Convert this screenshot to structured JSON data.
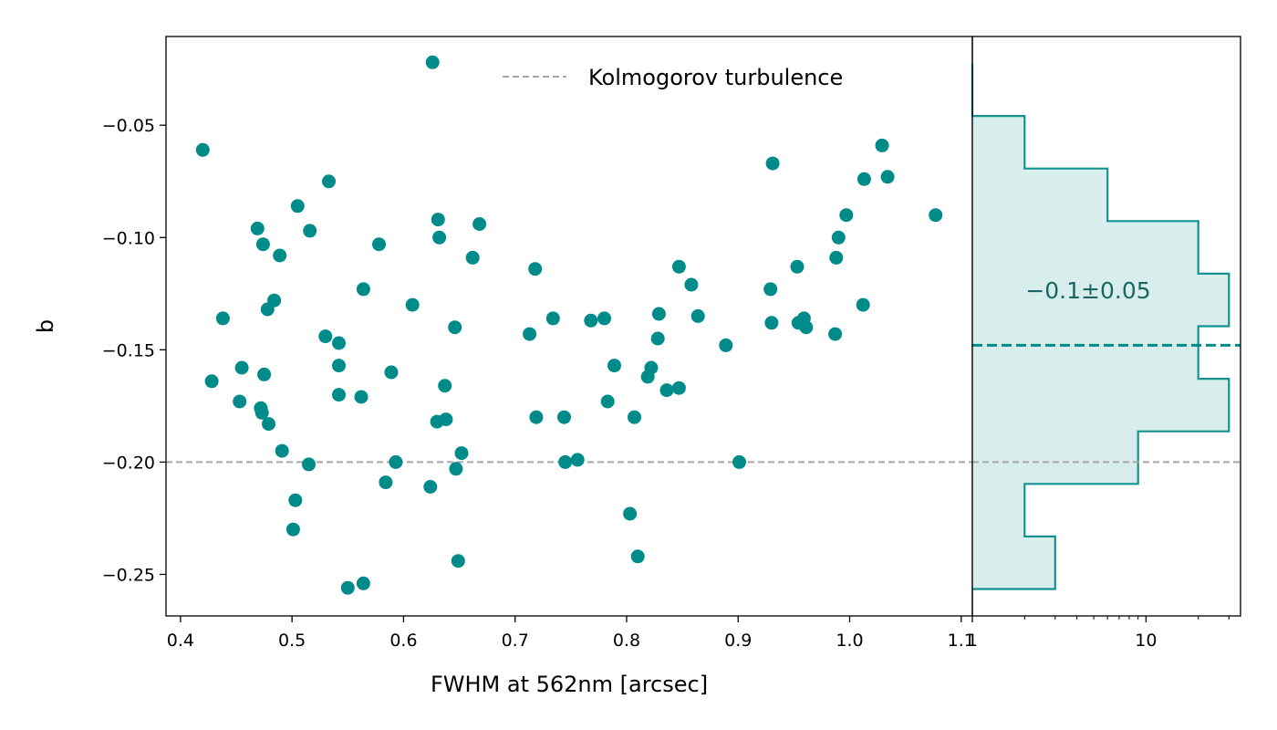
{
  "chart_data": [
    {
      "type": "scatter",
      "xlabel": "FWHM at 562nm [arcsec]",
      "ylabel": "b",
      "xlim": [
        0.387,
        1.11
      ],
      "ylim": [
        -0.2685,
        -0.0105
      ],
      "x_ticks": [
        0.4,
        0.5,
        0.6,
        0.7,
        0.8,
        0.9,
        1.0,
        1.1
      ],
      "x_tick_labels": [
        "0.4",
        "0.5",
        "0.6",
        "0.7",
        "0.8",
        "0.9",
        "1.0",
        "1.1"
      ],
      "y_ticks": [
        -0.05,
        -0.1,
        -0.15,
        -0.2,
        -0.25
      ],
      "y_tick_labels": [
        "−0.05",
        "−0.10",
        "−0.15",
        "−0.20",
        "−0.25"
      ],
      "grid": false,
      "legend": {
        "placement": "top-right",
        "entries": [
          "Kolmogorov turbulence"
        ]
      },
      "reference_line": {
        "name": "Kolmogorov turbulence",
        "y": -0.2,
        "style": "dashed",
        "color": "#a6a6a6"
      },
      "marker_color": "#008b8b",
      "points": [
        [
          0.42,
          -0.061
        ],
        [
          0.428,
          -0.164
        ],
        [
          0.438,
          -0.136
        ],
        [
          0.453,
          -0.173
        ],
        [
          0.455,
          -0.158
        ],
        [
          0.469,
          -0.096
        ],
        [
          0.472,
          -0.176
        ],
        [
          0.473,
          -0.178
        ],
        [
          0.474,
          -0.103
        ],
        [
          0.475,
          -0.161
        ],
        [
          0.478,
          -0.132
        ],
        [
          0.479,
          -0.183
        ],
        [
          0.484,
          -0.128
        ],
        [
          0.489,
          -0.108
        ],
        [
          0.491,
          -0.195
        ],
        [
          0.501,
          -0.23
        ],
        [
          0.503,
          -0.217
        ],
        [
          0.505,
          -0.086
        ],
        [
          0.515,
          -0.201
        ],
        [
          0.516,
          -0.097
        ],
        [
          0.53,
          -0.144
        ],
        [
          0.533,
          -0.075
        ],
        [
          0.542,
          -0.147
        ],
        [
          0.542,
          -0.157
        ],
        [
          0.542,
          -0.17
        ],
        [
          0.55,
          -0.256
        ],
        [
          0.562,
          -0.171
        ],
        [
          0.564,
          -0.254
        ],
        [
          0.564,
          -0.123
        ],
        [
          0.578,
          -0.103
        ],
        [
          0.584,
          -0.209
        ],
        [
          0.589,
          -0.16
        ],
        [
          0.593,
          -0.2
        ],
        [
          0.608,
          -0.13
        ],
        [
          0.624,
          -0.211
        ],
        [
          0.626,
          -0.022
        ],
        [
          0.63,
          -0.182
        ],
        [
          0.631,
          -0.092
        ],
        [
          0.632,
          -0.1
        ],
        [
          0.637,
          -0.166
        ],
        [
          0.638,
          -0.181
        ],
        [
          0.646,
          -0.14
        ],
        [
          0.647,
          -0.203
        ],
        [
          0.649,
          -0.244
        ],
        [
          0.652,
          -0.196
        ],
        [
          0.662,
          -0.109
        ],
        [
          0.668,
          -0.094
        ],
        [
          0.713,
          -0.143
        ],
        [
          0.718,
          -0.114
        ],
        [
          0.719,
          -0.18
        ],
        [
          0.734,
          -0.136
        ],
        [
          0.744,
          -0.18
        ],
        [
          0.745,
          -0.2
        ],
        [
          0.756,
          -0.199
        ],
        [
          0.768,
          -0.137
        ],
        [
          0.78,
          -0.136
        ],
        [
          0.783,
          -0.173
        ],
        [
          0.789,
          -0.157
        ],
        [
          0.803,
          -0.223
        ],
        [
          0.807,
          -0.18
        ],
        [
          0.81,
          -0.242
        ],
        [
          0.819,
          -0.162
        ],
        [
          0.822,
          -0.158
        ],
        [
          0.828,
          -0.145
        ],
        [
          0.829,
          -0.134
        ],
        [
          0.836,
          -0.168
        ],
        [
          0.847,
          -0.167
        ],
        [
          0.847,
          -0.113
        ],
        [
          0.858,
          -0.121
        ],
        [
          0.864,
          -0.135
        ],
        [
          0.889,
          -0.148
        ],
        [
          0.901,
          -0.2
        ],
        [
          0.929,
          -0.123
        ],
        [
          0.93,
          -0.138
        ],
        [
          0.931,
          -0.067
        ],
        [
          0.953,
          -0.113
        ],
        [
          0.954,
          -0.138
        ],
        [
          0.959,
          -0.136
        ],
        [
          0.961,
          -0.14
        ],
        [
          0.987,
          -0.143
        ],
        [
          0.988,
          -0.109
        ],
        [
          0.99,
          -0.1
        ],
        [
          0.997,
          -0.09
        ],
        [
          1.012,
          -0.13
        ],
        [
          1.013,
          -0.074
        ],
        [
          1.029,
          -0.059
        ],
        [
          1.034,
          -0.073
        ],
        [
          1.077,
          -0.09
        ]
      ]
    },
    {
      "type": "histogram",
      "orientation": "horizontal",
      "x_scale": "log",
      "xlim": [
        1,
        35
      ],
      "x_ticks": [
        1,
        10
      ],
      "x_tick_labels": [
        "1",
        "10"
      ],
      "ylim": [
        -0.2685,
        -0.0105
      ],
      "fill_color": "#d8eeed",
      "edge_color": "#139290",
      "bin_edges": [
        -0.2565,
        -0.2331,
        -0.2097,
        -0.1863,
        -0.1629,
        -0.1395,
        -0.1161,
        -0.0927,
        -0.0693,
        -0.0459,
        -0.0225
      ],
      "counts": [
        3,
        2,
        9,
        30,
        20,
        30,
        20,
        6,
        2,
        1
      ],
      "median_line": {
        "y": -0.148,
        "style": "dashed",
        "color": "#008b8b"
      },
      "annotation": "−0.1±0.05",
      "annotation_color": "#1c6565"
    }
  ]
}
